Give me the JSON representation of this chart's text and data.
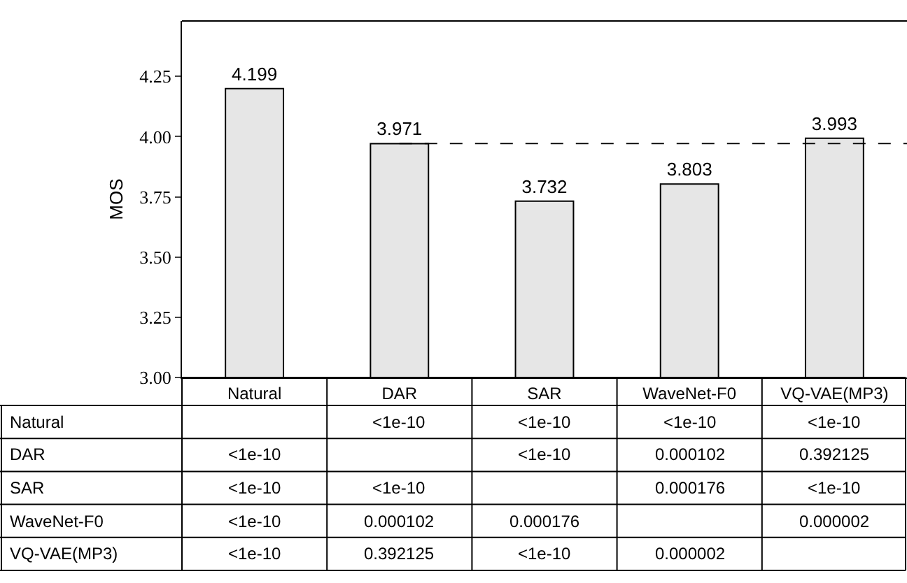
{
  "chart_data": {
    "type": "bar",
    "ylabel": "MOS",
    "categories": [
      "Natural",
      "DAR",
      "SAR",
      "WaveNet-F0",
      "VQ-VAE(MP3)"
    ],
    "values": [
      4.199,
      3.971,
      3.732,
      3.803,
      3.993
    ],
    "color": "#e6e6e6",
    "data_labels": true,
    "ylim": [
      3.0,
      4.48
    ],
    "yticks": [
      {
        "value": 3.0,
        "label": "3.00"
      },
      3.25,
      {
        "value": 3.5,
        "label": "3.50"
      },
      3.75,
      {
        "value": 4.0,
        "label": "4.00"
      },
      4.25
    ],
    "ref_lines": [
      {
        "axis": "y",
        "value": 3.971,
        "line_style": "dashed",
        "color": "#000000"
      }
    ],
    "annotations": [
      "Natural",
      "<1e-10",
      "<1e-10",
      "<1e-10",
      "<1e-10",
      "DAR",
      "<1e-10",
      "<1e-10",
      "0.000102",
      "0.392125",
      "SAR",
      "<1e-10",
      "<1e-10",
      "0.000176",
      "<1e-10",
      "WaveNet-F0",
      "<1e-10",
      "0.000102",
      "0.000176",
      "0.000002",
      "VQ-VAE(MP3)",
      "<1e-10",
      "0.392125",
      "<1e-10",
      "0.000002"
    ]
  }
}
